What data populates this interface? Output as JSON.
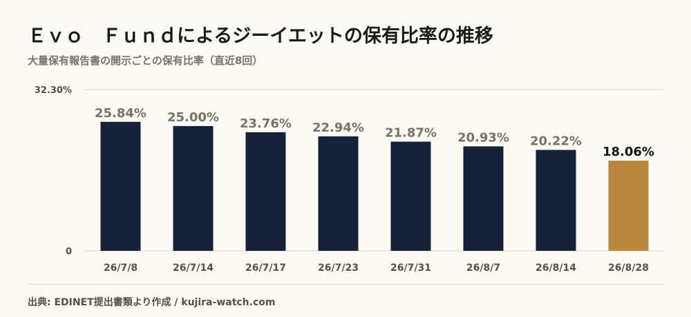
{
  "title": "Ｅｖｏ　Ｆｕｎｄによるジーイエットの保有比率の推移",
  "subtitle": "大量保有報告書の開示ごとの保有比率（直近8回）",
  "source": "出典: EDINET提出書類より作成 / kujira-watch.com",
  "colors": {
    "bar": "#16213a",
    "highlight": "#b8873c",
    "value_label": "#7a7264",
    "highlight_label": "#111111",
    "grid": "#ddd6c4",
    "axis_text": "#55504a"
  },
  "chart_data": {
    "type": "bar",
    "title": "Ｅｖｏ　Ｆｕｎｄによるジーイエットの保有比率の推移",
    "subtitle": "大量保有報告書の開示ごとの保有比率（直近8回）",
    "xlabel": "",
    "ylabel": "",
    "categories": [
      "26/7/8",
      "26/7/14",
      "26/7/17",
      "26/7/23",
      "26/7/31",
      "26/8/7",
      "26/8/14",
      "26/8/28"
    ],
    "values": [
      25.84,
      25.0,
      23.76,
      22.94,
      21.87,
      20.93,
      20.22,
      18.06
    ],
    "value_labels": [
      "25.84%",
      "25.00%",
      "23.76%",
      "22.94%",
      "21.87%",
      "20.93%",
      "20.22%",
      "18.06%"
    ],
    "ylim": [
      0,
      32.3
    ],
    "y_tick_labels": [
      "0",
      "32.30%"
    ],
    "highlight_index": 7,
    "grid": true
  }
}
